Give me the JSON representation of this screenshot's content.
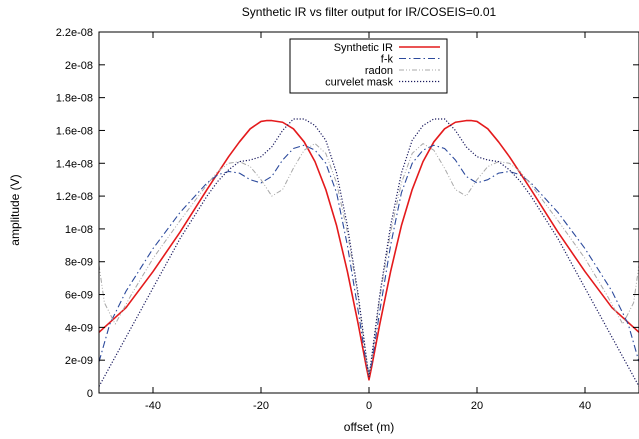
{
  "chart_data": {
    "type": "line",
    "title": "Synthetic IR vs filter output for IR/COSEIS=0.01",
    "xlabel": "offset (m)",
    "ylabel": "amplitude (V)",
    "xlim": [
      -50,
      50
    ],
    "ylim": [
      0,
      2.2e-08
    ],
    "x_ticks": [
      -40,
      -20,
      0,
      20,
      40
    ],
    "x_tick_labels": [
      "-40",
      "-20",
      "0",
      "20",
      "40"
    ],
    "y_ticks": [
      0,
      2e-09,
      4e-09,
      6e-09,
      8e-09,
      1e-08,
      1.2e-08,
      1.4e-08,
      1.6e-08,
      1.8e-08,
      2e-08,
      2.2e-08
    ],
    "y_tick_labels": [
      "0",
      "2e-09",
      "4e-09",
      "6e-09",
      "8e-09",
      "1e-08",
      "1.2e-08",
      "1.4e-08",
      "1.6e-08",
      "1.8e-08",
      "2e-08",
      "2.2e-08"
    ],
    "grid": false,
    "legend": "top-center",
    "series": [
      {
        "name": "Synthetic IR",
        "color": "#e41a1c",
        "style": "solid",
        "x": [
          0,
          0.5,
          2,
          4,
          6,
          8,
          10,
          12,
          14,
          16,
          18,
          19,
          20,
          22,
          24,
          26,
          28,
          30,
          35,
          40,
          45,
          50
        ],
        "y": [
          8e-10,
          1.6e-09,
          4.2e-09,
          7.4e-09,
          1.02e-08,
          1.24e-08,
          1.41e-08,
          1.53e-08,
          1.61e-08,
          1.65e-08,
          1.66e-08,
          1.66e-08,
          1.655e-08,
          1.61e-08,
          1.53e-08,
          1.44e-08,
          1.34e-08,
          1.24e-08,
          9.8e-09,
          7.4e-09,
          5.2e-09,
          3.7e-09
        ]
      },
      {
        "name": "f-k",
        "color": "#2c4a9c",
        "style": "dash-dot",
        "x": [
          0,
          0.5,
          2,
          4,
          6,
          8,
          10,
          12,
          14,
          16,
          18,
          20,
          22,
          24,
          26,
          28,
          30,
          35,
          40,
          45,
          48,
          50
        ],
        "y": [
          1.2e-09,
          1.8e-09,
          5e-09,
          9e-09,
          1.22e-08,
          1.4e-08,
          1.48e-08,
          1.51e-08,
          1.49e-08,
          1.42e-08,
          1.32e-08,
          1.28e-08,
          1.3e-08,
          1.34e-08,
          1.35e-08,
          1.33e-08,
          1.28e-08,
          1.1e-08,
          8.8e-09,
          6.2e-09,
          4.2e-09,
          1.9e-09
        ]
      },
      {
        "name": "radon",
        "color": "#a8a8a8",
        "style": "dash-dot-dot",
        "x": [
          0,
          0.5,
          2,
          4,
          6,
          8,
          10,
          12,
          14,
          16,
          18,
          20,
          22,
          24,
          26,
          28,
          30,
          35,
          40,
          44,
          47,
          49,
          50
        ],
        "y": [
          1e-09,
          2e-09,
          5.8e-09,
          9.8e-09,
          1.28e-08,
          1.46e-08,
          1.52e-08,
          1.48e-08,
          1.37e-08,
          1.24e-08,
          1.2e-08,
          1.3e-08,
          1.38e-08,
          1.41e-08,
          1.4e-08,
          1.35e-08,
          1.27e-08,
          1.05e-08,
          8.2e-09,
          6e-09,
          4.2e-09,
          5.5e-09,
          7.8e-09
        ]
      },
      {
        "name": "curvelet mask",
        "color": "#1a1a5e",
        "style": "dotted",
        "x": [
          0,
          0.5,
          2,
          4,
          6,
          8,
          10,
          12,
          14,
          16,
          18,
          20,
          22,
          24,
          26,
          28,
          30,
          35,
          40,
          45,
          48,
          50
        ],
        "y": [
          1e-09,
          2.2e-09,
          6e-09,
          1.02e-08,
          1.34e-08,
          1.54e-08,
          1.63e-08,
          1.67e-08,
          1.67e-08,
          1.6e-08,
          1.5e-08,
          1.44e-08,
          1.42e-08,
          1.41e-08,
          1.36e-08,
          1.29e-08,
          1.2e-08,
          9.4e-09,
          6.4e-09,
          3.4e-09,
          1.6e-09,
          4e-10
        ]
      }
    ]
  }
}
